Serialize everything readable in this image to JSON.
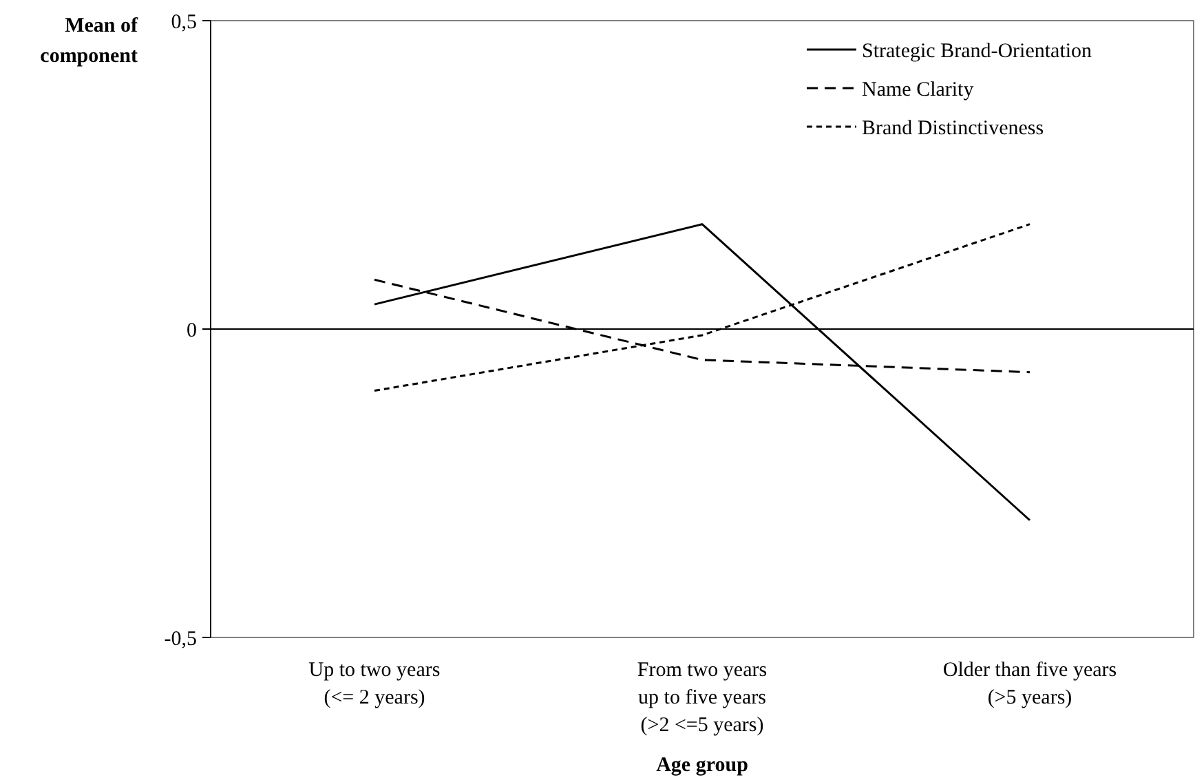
{
  "chart_data": {
    "type": "line",
    "xlabel": "Age group",
    "ylabel": "Mean of component",
    "categories": [
      "Up to two years\n(<= 2 years)",
      "From two years\nup to five years\n(>2 <=5 years)",
      "Older than five years\n(>5 years)"
    ],
    "ylim": [
      -0.5,
      0.5
    ],
    "yticks": [
      {
        "value": -0.5,
        "label": "-0,5"
      },
      0,
      {
        "value": 0.5,
        "label": "0,5"
      }
    ],
    "ref_lines": [
      {
        "axis": "y",
        "value": 0,
        "color": "#000000"
      }
    ],
    "legend": "top right",
    "marker": "none",
    "series": [
      {
        "name": "Strategic Brand-Orientation",
        "color": "#000000",
        "line_style": "solid",
        "values": [
          0.04,
          0.17,
          -0.31
        ]
      },
      {
        "name": "Name Clarity",
        "color": "#000000",
        "line_style": "dashed",
        "values": [
          0.08,
          -0.05,
          -0.07
        ]
      },
      {
        "name": "Brand Distinctiveness",
        "color": "#000000",
        "line_style": "dotted",
        "values": [
          -0.1,
          -0.01,
          0.17
        ]
      }
    ]
  }
}
